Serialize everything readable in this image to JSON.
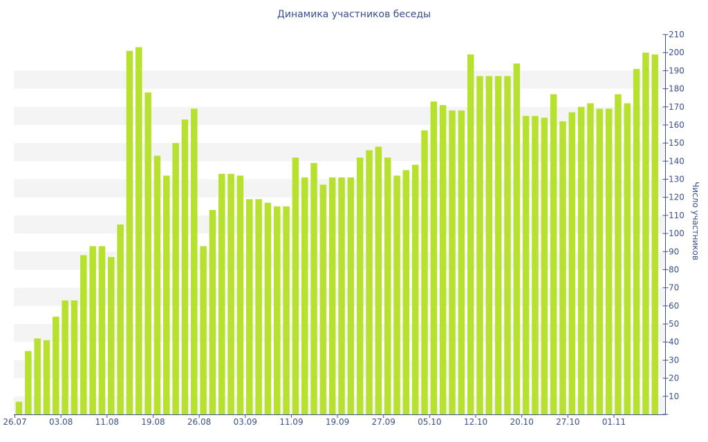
{
  "chart_data": {
    "type": "bar",
    "title": "Динамика участников беседы",
    "xlabel": "",
    "ylabel": "Число участников",
    "ylim": [
      0,
      210
    ],
    "y_ticks": [
      0,
      10,
      20,
      30,
      40,
      50,
      60,
      70,
      80,
      90,
      100,
      110,
      120,
      130,
      140,
      150,
      160,
      170,
      180,
      190,
      200,
      210
    ],
    "y_axis_side": "right",
    "x_tick_labels": [
      "26.07",
      "03.08",
      "11.08",
      "19.08",
      "26.08",
      "03.09",
      "11.09",
      "19.09",
      "27.09",
      "05.10",
      "12.10",
      "20.10",
      "27.10",
      "01.11"
    ],
    "bar_color": "#b8e02e",
    "band_color": "#f4f4f4",
    "text_color": "#3a4f8c",
    "values": [
      7,
      35,
      42,
      41,
      54,
      63,
      63,
      88,
      93,
      93,
      87,
      105,
      201,
      203,
      178,
      143,
      132,
      150,
      163,
      169,
      93,
      113,
      133,
      133,
      132,
      119,
      119,
      117,
      115,
      115,
      142,
      131,
      139,
      127,
      131,
      131,
      131,
      142,
      146,
      148,
      142,
      132,
      135,
      138,
      157,
      173,
      171,
      168,
      168,
      199,
      187,
      187,
      187,
      187,
      194,
      165,
      165,
      164,
      177,
      162,
      167,
      170,
      172,
      169,
      169,
      177,
      172,
      191,
      200,
      199
    ]
  }
}
